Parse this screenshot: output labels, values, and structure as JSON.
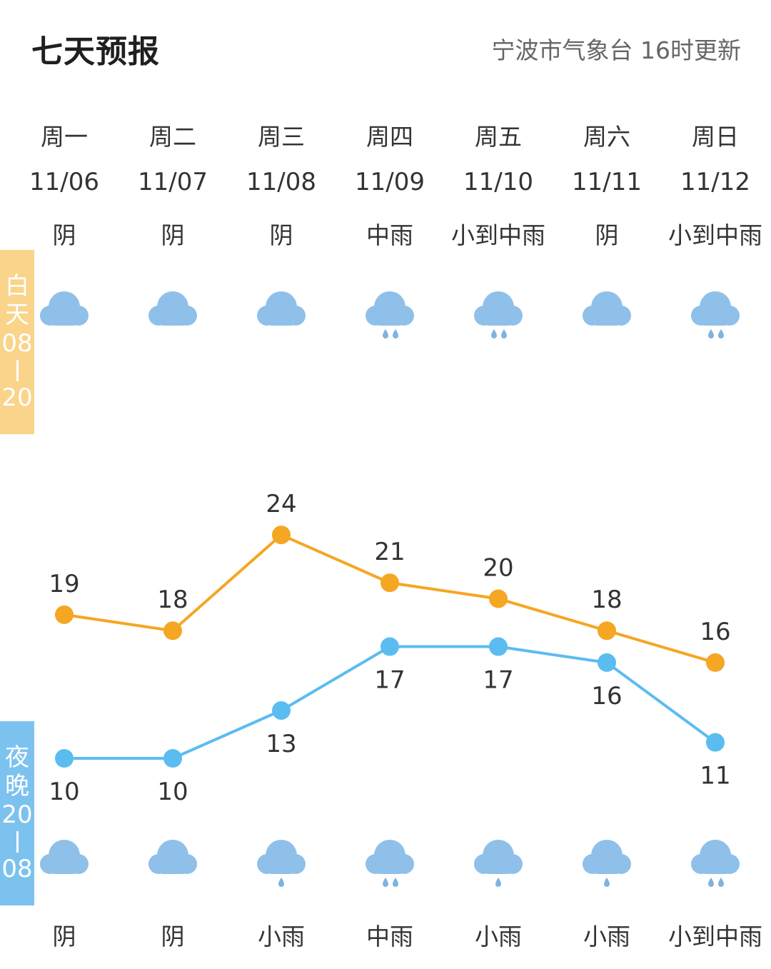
{
  "header": {
    "title": "七天预报",
    "source": "宁波市气象台 16时更新"
  },
  "side_labels": {
    "day": [
      "白",
      "天",
      "08",
      "20"
    ],
    "night": [
      "夜",
      "晚",
      "20",
      "08"
    ]
  },
  "days": [
    {
      "weekday": "周一",
      "date": "11/06",
      "day_condition": "阴",
      "night_condition": "阴",
      "day_icon": "cloud-icon",
      "night_icon": "cloud-icon"
    },
    {
      "weekday": "周二",
      "date": "11/07",
      "day_condition": "阴",
      "night_condition": "阴",
      "day_icon": "cloud-icon",
      "night_icon": "cloud-icon"
    },
    {
      "weekday": "周三",
      "date": "11/08",
      "day_condition": "阴",
      "night_condition": "小雨",
      "day_icon": "cloud-icon",
      "night_icon": "light-rain-icon"
    },
    {
      "weekday": "周四",
      "date": "11/09",
      "day_condition": "中雨",
      "night_condition": "中雨",
      "day_icon": "moderate-rain-icon",
      "night_icon": "moderate-rain-icon"
    },
    {
      "weekday": "周五",
      "date": "11/10",
      "day_condition": "小到中雨",
      "night_condition": "小雨",
      "day_icon": "moderate-rain-icon",
      "night_icon": "light-rain-icon"
    },
    {
      "weekday": "周六",
      "date": "11/11",
      "day_condition": "阴",
      "night_condition": "小雨",
      "day_icon": "cloud-icon",
      "night_icon": "light-rain-icon"
    },
    {
      "weekday": "周日",
      "date": "11/12",
      "day_condition": "小到中雨",
      "night_condition": "小到中雨",
      "day_icon": "moderate-rain-icon",
      "night_icon": "moderate-rain-icon"
    }
  ],
  "chart_data": {
    "type": "line",
    "categories": [
      "11/06",
      "11/07",
      "11/08",
      "11/09",
      "11/10",
      "11/11",
      "11/12"
    ],
    "series": [
      {
        "values": [
          19,
          18,
          24,
          21,
          20,
          18,
          16
        ],
        "color": "#f5a623"
      },
      {
        "values": [
          10,
          10,
          13,
          17,
          17,
          16,
          11
        ],
        "color": "#5bbcf0"
      }
    ]
  },
  "colors": {
    "cloud": "#8fc0ea",
    "rain": "#7fb3e0",
    "day_badge": "#f9d48a",
    "night_badge": "#7cc2ef"
  }
}
